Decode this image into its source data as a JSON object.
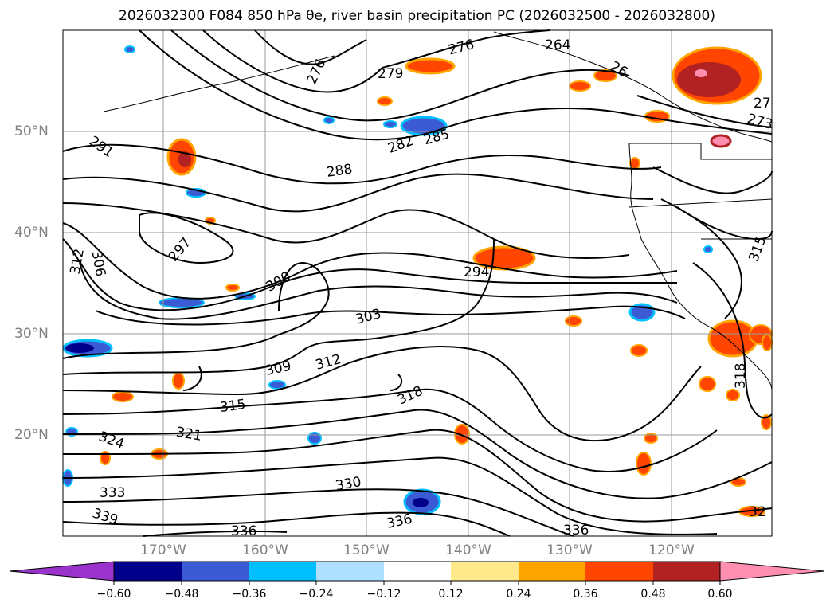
{
  "title": "2026032300 F084 850 hPa θe, river basin precipitation PC (2026032500 - 2026032800)",
  "latitude_labels": [
    "50°N",
    "40°N",
    "30°N",
    "20°N"
  ],
  "longitude_labels": [
    "170°W",
    "160°W",
    "150°W",
    "140°W",
    "130°W",
    "120°W"
  ],
  "contour_labels": [
    "276",
    "264",
    "279",
    "276",
    "291",
    "282",
    "285",
    "288",
    "297",
    "306",
    "312",
    "294",
    "300",
    "303",
    "309",
    "312",
    "315",
    "318",
    "321",
    "324",
    "330",
    "333",
    "339",
    "336",
    "336",
    "336",
    "318",
    "315",
    "27",
    "273",
    "32",
    "26"
  ],
  "colorbar": {
    "ticks": [
      "−0.60",
      "−0.48",
      "−0.36",
      "−0.24",
      "−0.12",
      "0.12",
      "0.24",
      "0.36",
      "0.48",
      "0.60"
    ],
    "colors": [
      "#9933cc",
      "#00008b",
      "#3a5bd3",
      "#00bfff",
      "#b0e0ff",
      "#ffffff",
      "#ffe98a",
      "#ffa500",
      "#ff4500",
      "#b22222",
      "#ff8fb0"
    ]
  }
}
